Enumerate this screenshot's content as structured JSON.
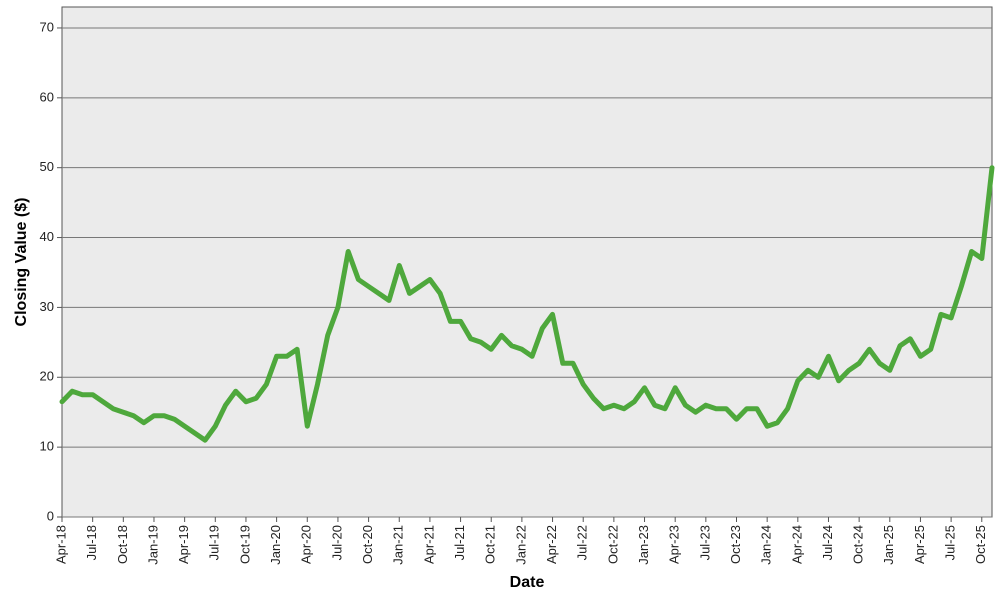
{
  "chart_data": {
    "type": "line",
    "x_label": "Date",
    "y_label": "Closing Value ($)",
    "x": [
      "2018-04",
      "2018-05",
      "2018-06",
      "2018-07",
      "2018-08",
      "2018-09",
      "2018-10",
      "2018-11",
      "2018-12",
      "2019-01",
      "2019-02",
      "2019-03",
      "2019-04",
      "2019-05",
      "2019-06",
      "2019-07",
      "2019-08",
      "2019-09",
      "2019-10",
      "2019-11",
      "2019-12",
      "2020-01",
      "2020-02",
      "2020-03",
      "2020-04",
      "2020-05",
      "2020-06",
      "2020-07",
      "2020-08",
      "2020-09",
      "2020-10",
      "2020-11",
      "2020-12",
      "2021-01",
      "2021-02",
      "2021-03",
      "2021-04",
      "2021-05",
      "2021-06",
      "2021-07",
      "2021-08",
      "2021-09",
      "2021-10",
      "2021-11",
      "2021-12",
      "2022-01",
      "2022-02",
      "2022-03",
      "2022-04",
      "2022-05",
      "2022-06",
      "2022-07",
      "2022-08",
      "2022-09",
      "2022-10",
      "2022-11",
      "2022-12",
      "2023-01",
      "2023-02",
      "2023-03",
      "2023-04",
      "2023-05",
      "2023-06",
      "2023-07",
      "2023-08",
      "2023-09",
      "2023-10",
      "2023-11",
      "2023-12",
      "2024-01",
      "2024-02",
      "2024-03",
      "2024-04",
      "2024-05",
      "2024-06",
      "2024-07",
      "2024-08",
      "2024-09",
      "2024-10",
      "2024-11",
      "2024-12",
      "2025-01",
      "2025-02",
      "2025-03",
      "2025-04",
      "2025-05",
      "2025-06",
      "2025-07",
      "2025-08",
      "2025-09",
      "2025-10",
      "2025-11"
    ],
    "series": [
      {
        "color": "#4ea83c",
        "values": [
          16.5,
          18,
          17.5,
          17.5,
          16.5,
          15.5,
          15,
          14.5,
          13.5,
          14.5,
          14.5,
          14,
          13,
          12,
          11,
          13,
          16,
          18,
          16.5,
          17,
          19,
          23,
          23,
          24,
          13,
          19,
          26,
          30,
          38,
          34,
          33,
          32,
          31,
          36,
          32,
          33,
          34,
          32,
          28,
          28,
          25.5,
          25,
          24,
          26,
          24.5,
          24,
          23,
          27,
          29,
          22,
          22,
          19,
          17,
          15.5,
          16,
          15.5,
          16.5,
          18.5,
          16,
          15.5,
          18.5,
          16,
          15,
          16,
          15.5,
          15.5,
          14,
          15.5,
          15.5,
          13,
          13.5,
          15.5,
          19.5,
          21,
          20,
          23,
          19.5,
          21,
          22,
          24,
          22,
          21,
          24.5,
          25.5,
          23,
          24,
          29,
          28.5,
          33,
          38,
          37,
          50
        ]
      }
    ],
    "xlim": [
      "2018-04",
      "2025-11"
    ],
    "ylim": [
      0,
      73
    ],
    "yticks": [
      0,
      10,
      20,
      30,
      40,
      50,
      60,
      70
    ],
    "xticks": [
      {
        "value": "2018-04",
        "label": "Apr-18"
      },
      {
        "value": "2018-07",
        "label": "Jul-18"
      },
      {
        "value": "2018-10",
        "label": "Oct-18"
      },
      {
        "value": "2019-01",
        "label": "Jan-19"
      },
      {
        "value": "2019-04",
        "label": "Apr-19"
      },
      {
        "value": "2019-07",
        "label": "Jul-19"
      },
      {
        "value": "2019-10",
        "label": "Oct-19"
      },
      {
        "value": "2020-01",
        "label": "Jan-20"
      },
      {
        "value": "2020-04",
        "label": "Apr-20"
      },
      {
        "value": "2020-07",
        "label": "Jul-20"
      },
      {
        "value": "2020-10",
        "label": "Oct-20"
      },
      {
        "value": "2021-01",
        "label": "Jan-21"
      },
      {
        "value": "2021-04",
        "label": "Apr-21"
      },
      {
        "value": "2021-07",
        "label": "Jul-21"
      },
      {
        "value": "2021-10",
        "label": "Oct-21"
      },
      {
        "value": "2022-01",
        "label": "Jan-22"
      },
      {
        "value": "2022-04",
        "label": "Apr-22"
      },
      {
        "value": "2022-07",
        "label": "Jul-22"
      },
      {
        "value": "2022-10",
        "label": "Oct-22"
      },
      {
        "value": "2023-01",
        "label": "Jan-23"
      },
      {
        "value": "2023-04",
        "label": "Apr-23"
      },
      {
        "value": "2023-07",
        "label": "Jul-23"
      },
      {
        "value": "2023-10",
        "label": "Oct-23"
      },
      {
        "value": "2024-01",
        "label": "Jan-24"
      },
      {
        "value": "2024-04",
        "label": "Apr-24"
      },
      {
        "value": "2024-07",
        "label": "Jul-24"
      },
      {
        "value": "2024-10",
        "label": "Oct-24"
      },
      {
        "value": "2025-01",
        "label": "Jan-25"
      },
      {
        "value": "2025-04",
        "label": "Apr-25"
      },
      {
        "value": "2025-07",
        "label": "Jul-25"
      },
      {
        "value": "2025-10",
        "label": "Oct-25"
      }
    ],
    "grid": true
  }
}
